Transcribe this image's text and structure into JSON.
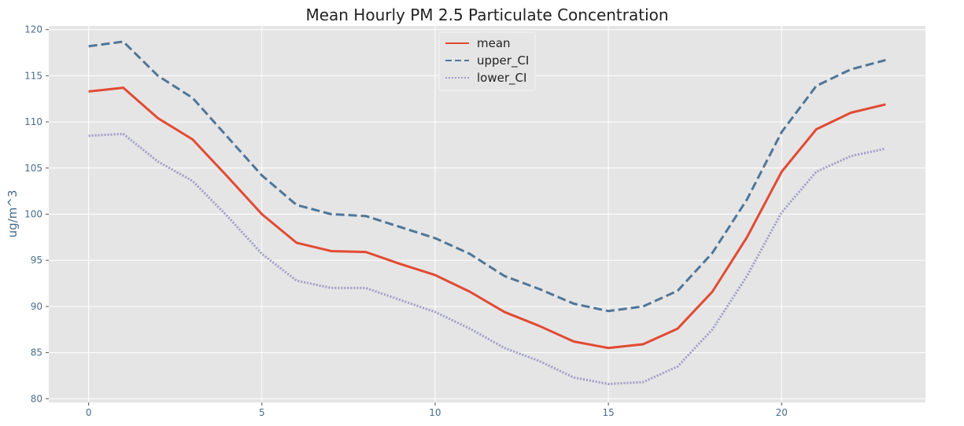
{
  "chart_data": {
    "type": "line",
    "title": "Mean Hourly PM 2.5 Particulate Concentration",
    "xlabel": "",
    "ylabel": "ug/m^3",
    "xlim": [
      -1.15,
      24.15
    ],
    "ylim": [
      79.6,
      120.4
    ],
    "x_ticks": [
      0,
      5,
      10,
      15,
      20
    ],
    "y_ticks": [
      80,
      85,
      90,
      95,
      100,
      105,
      110,
      115,
      120
    ],
    "grid": true,
    "legend_position": "top-center",
    "background": "#e5e5e5",
    "x": [
      0,
      1,
      2,
      3,
      4,
      5,
      6,
      7,
      8,
      9,
      10,
      11,
      12,
      13,
      14,
      15,
      16,
      17,
      18,
      19,
      20,
      21,
      22,
      23
    ],
    "series": [
      {
        "name": "mean",
        "style": "solid",
        "color": "#e24a33",
        "values": [
          113.3,
          113.7,
          110.4,
          108.1,
          104.1,
          100.0,
          96.9,
          96.0,
          95.9,
          94.6,
          93.4,
          91.6,
          89.4,
          87.9,
          86.2,
          85.5,
          85.9,
          87.6,
          91.6,
          97.5,
          104.6,
          109.2,
          111.0,
          111.9
        ]
      },
      {
        "name": "upper_CI",
        "style": "dashed",
        "color": "#4f7698",
        "values": [
          118.2,
          118.7,
          115.0,
          112.6,
          108.4,
          104.2,
          101.0,
          100.0,
          99.8,
          98.6,
          97.4,
          95.7,
          93.3,
          91.9,
          90.3,
          89.5,
          90.0,
          91.7,
          95.8,
          101.6,
          108.9,
          113.9,
          115.7,
          116.7
        ]
      },
      {
        "name": "lower_CI",
        "style": "dotted",
        "color": "#9e9bc7",
        "values": [
          108.5,
          108.7,
          105.7,
          103.6,
          99.8,
          95.7,
          92.8,
          92.0,
          92.0,
          90.7,
          89.4,
          87.6,
          85.5,
          84.1,
          82.3,
          81.6,
          81.8,
          83.5,
          87.5,
          93.3,
          100.2,
          104.6,
          106.3,
          107.1
        ]
      }
    ]
  }
}
